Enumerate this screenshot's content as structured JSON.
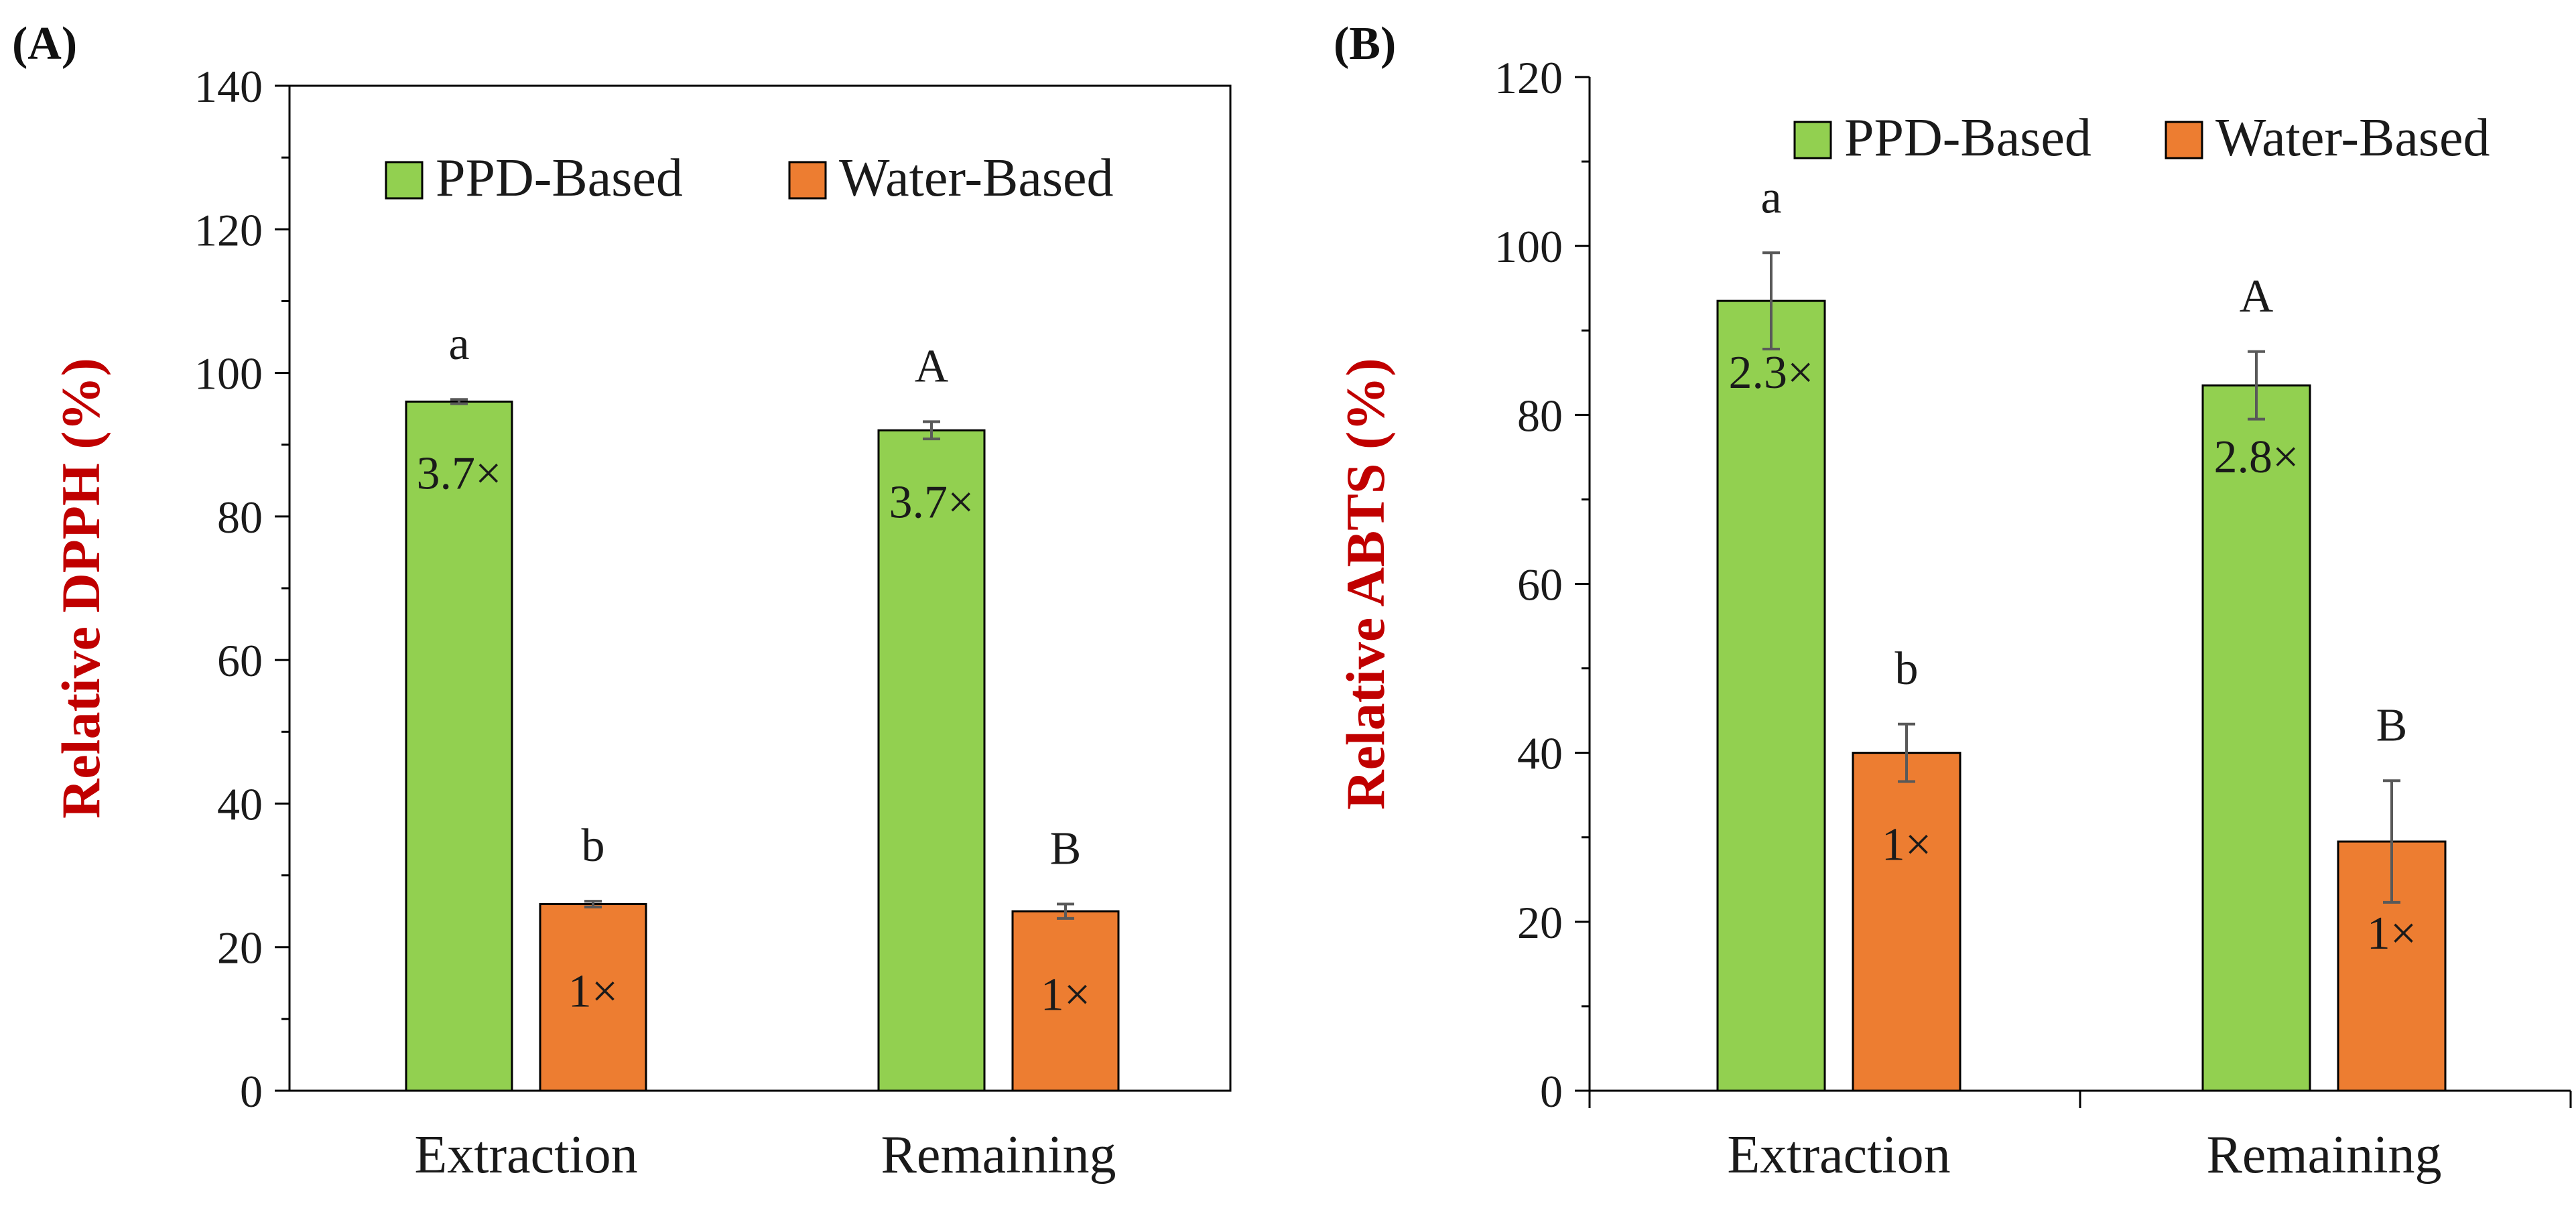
{
  "colors": {
    "ppd": "#92d050",
    "water": "#ed7d31",
    "ylabel": "#c00000",
    "axis": "#000000",
    "errorbar": "#595959"
  },
  "chart_data": [
    {
      "type": "bar",
      "panel": "(A)",
      "ylabel": "Relative DPPH (%)",
      "ylim": [
        0,
        140
      ],
      "yticks": [
        0,
        20,
        40,
        60,
        80,
        100,
        120,
        140
      ],
      "categories": [
        "Extraction",
        "Remaining"
      ],
      "legend": {
        "position": "top",
        "entries": [
          "PPD-Based",
          "Water-Based"
        ]
      },
      "series": [
        {
          "name": "PPD-Based",
          "values": [
            96,
            92
          ],
          "errors": [
            0.3,
            1.2
          ],
          "bar_labels": [
            "3.7×",
            "3.7×"
          ],
          "sig_labels": [
            "a",
            "A"
          ]
        },
        {
          "name": "Water-Based",
          "values": [
            26,
            25
          ],
          "errors": [
            0.4,
            1.0
          ],
          "bar_labels": [
            "1×",
            "1×"
          ],
          "sig_labels": [
            "b",
            "B"
          ]
        }
      ]
    },
    {
      "type": "bar",
      "panel": "(B)",
      "ylabel": "Relative ABTS (%)",
      "ylim": [
        0,
        120
      ],
      "yticks": [
        0,
        20,
        40,
        60,
        80,
        100,
        120
      ],
      "categories": [
        "Extraction",
        "Remaining"
      ],
      "legend": {
        "position": "top",
        "entries": [
          "PPD-Based",
          "Water-Based"
        ]
      },
      "series": [
        {
          "name": "PPD-Based",
          "values": [
            93.5,
            83.5
          ],
          "errors": [
            5.7,
            4.0
          ],
          "bar_labels": [
            "2.3×",
            "2.8×"
          ],
          "sig_labels": [
            "a",
            "A"
          ]
        },
        {
          "name": "Water-Based",
          "values": [
            40,
            29.5
          ],
          "errors": [
            3.4,
            7.2
          ],
          "bar_labels": [
            "1×",
            "1×"
          ],
          "sig_labels": [
            "b",
            "B"
          ]
        }
      ]
    }
  ]
}
